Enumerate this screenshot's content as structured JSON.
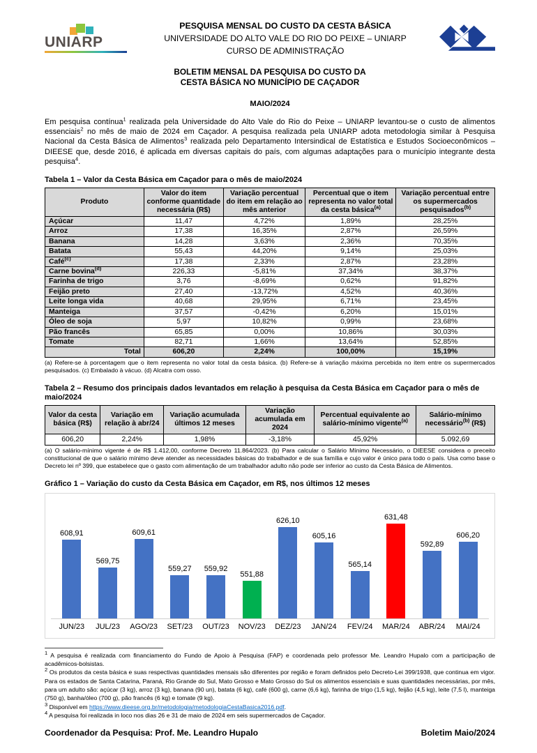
{
  "colors": {
    "bar_blue": "#4472c4",
    "bar_green": "#00b050",
    "bar_red": "#ff0000",
    "table_header_bg": "#d9d9d9",
    "logo_navy": "#1c3f94",
    "link_blue": "#0563c1"
  },
  "header": {
    "uniarp_wordmark": "UNIARP",
    "research_title": "PESQUISA MENSAL DO CUSTO DA CESTA BÁSICA",
    "university": "UNIVERSIDADE DO ALTO VALE DO RIO DO PEIXE – UNIARP",
    "course": "CURSO DE ADMINISTRAÇÃO"
  },
  "bulletin": {
    "title_line1": "BOLETIM MENSAL DA PESQUISA DO CUSTO DA",
    "title_line2": "CESTA BÁSICA NO MUNICÍPIO DE CAÇADOR",
    "month": "MAIO/2024"
  },
  "intro": {
    "p1": "Em pesquisa contínua",
    "s1": "1",
    "p2": " realizada pela Universidade do Alto Vale do Rio do Peixe – UNIARP levantou-se o custo de alimentos essenciais",
    "s2": "2",
    "p3": " no mês de maio de 2024 em Caçador. A pesquisa realizada pela UNIARP adota metodologia similar à Pesquisa Nacional da Cesta Básica de Alimentos",
    "s3": "3",
    "p4": " realizada pelo Departamento Intersindical de Estatística e Estudos Socioeconômicos – DIEESE que, desde 2016, é aplicada em diversas capitais do país, com algumas adaptações para o município integrante desta pesquisa",
    "s4": "4",
    "p5": "."
  },
  "table1": {
    "title": "Tabela 1 – Valor da Cesta Básica em Caçador para o mês de maio/2024",
    "headers": [
      {
        "pre": "Produto",
        "sup": "",
        "post": ""
      },
      {
        "pre": "Valor do item conforme quantidade necessária (R$)",
        "sup": "",
        "post": ""
      },
      {
        "pre": "Variação percentual do item em relação ao mês anterior",
        "sup": "",
        "post": ""
      },
      {
        "pre": "Percentual que o item representa no valor total da cesta básica",
        "sup": "(a)",
        "post": ""
      },
      {
        "pre": "Variação percentual entre os supermercados pesquisados",
        "sup": "(b)",
        "post": ""
      }
    ],
    "rows": [
      {
        "name": "Açúcar",
        "sup": "",
        "valor": "11,47",
        "var_mes": "4,72%",
        "pct_total": "1,89%",
        "var_super": "28,25%"
      },
      {
        "name": "Arroz",
        "sup": "",
        "valor": "17,38",
        "var_mes": "16,35%",
        "pct_total": "2,87%",
        "var_super": "26,59%"
      },
      {
        "name": "Banana",
        "sup": "",
        "valor": "14,28",
        "var_mes": "3,63%",
        "pct_total": "2,36%",
        "var_super": "70,35%"
      },
      {
        "name": "Batata",
        "sup": "",
        "valor": "55,43",
        "var_mes": "44,20%",
        "pct_total": "9,14%",
        "var_super": "25,03%"
      },
      {
        "name": "Café",
        "sup": "(c)",
        "valor": "17,38",
        "var_mes": "2,33%",
        "pct_total": "2,87%",
        "var_super": "23,28%"
      },
      {
        "name": "Carne bovina",
        "sup": "(d)",
        "valor": "226,33",
        "var_mes": "-5,81%",
        "pct_total": "37,34%",
        "var_super": "38,37%"
      },
      {
        "name": "Farinha de trigo",
        "sup": "",
        "valor": "3,76",
        "var_mes": "-8,69%",
        "pct_total": "0,62%",
        "var_super": "91,82%"
      },
      {
        "name": "Feijão preto",
        "sup": "",
        "valor": "27,40",
        "var_mes": "-13,72%",
        "pct_total": "4,52%",
        "var_super": "40,36%"
      },
      {
        "name": "Leite longa vida",
        "sup": "",
        "valor": "40,68",
        "var_mes": "29,95%",
        "pct_total": "6,71%",
        "var_super": "23,45%"
      },
      {
        "name": "Manteiga",
        "sup": "",
        "valor": "37,57",
        "var_mes": "-0,42%",
        "pct_total": "6,20%",
        "var_super": "15,01%"
      },
      {
        "name": "Óleo de soja",
        "sup": "",
        "valor": "5,97",
        "var_mes": "10,82%",
        "pct_total": "0,99%",
        "var_super": "23,68%"
      },
      {
        "name": "Pão francês",
        "sup": "",
        "valor": "65,85",
        "var_mes": "0,00%",
        "pct_total": "10,86%",
        "var_super": "30,03%"
      },
      {
        "name": "Tomate",
        "sup": "",
        "valor": "82,71",
        "var_mes": "1,66%",
        "pct_total": "13,64%",
        "var_super": "52,85%"
      }
    ],
    "total": {
      "label": "Total",
      "valor": "606,20",
      "var_mes": "2,24%",
      "pct_total": "100,00%",
      "var_super": "15,19%"
    },
    "footnote": "(a) Refere-se à porcentagem que o item representa no valor total da cesta básica. (b) Refere-se à variação máxima percebida no item entre os supermercados pesquisados. (c) Embalado à vácuo. (d) Alcatra com osso."
  },
  "table2": {
    "title": "Tabela 2 – Resumo dos principais dados levantados em relação à pesquisa da Cesta Básica em Caçador para o mês de maio/2024",
    "headers": [
      {
        "pre": "Valor da cesta básica (R$)",
        "sup": "",
        "post": ""
      },
      {
        "pre": "Variação em relação à abr/24",
        "sup": "",
        "post": ""
      },
      {
        "pre": "Variação acumulada últimos 12 meses",
        "sup": "",
        "post": ""
      },
      {
        "pre": "Variação acumulada em 2024",
        "sup": "",
        "post": ""
      },
      {
        "pre": "Percentual equivalente ao salário-mínimo vigente",
        "sup": "(a)",
        "post": ""
      },
      {
        "pre": "Salário-mínimo necessário",
        "sup": "(b)",
        "post": " (R$)"
      }
    ],
    "values": [
      "606,20",
      "2,24%",
      "1,98%",
      "-3,18%",
      "45,92%",
      "5.092,69"
    ],
    "footnote": "(a) O salário-mínimo vigente é de R$ 1.412,00, conforme Decreto 11.864/2023. (b) Para calcular o Salário Mínimo Necessário, o DIEESE considera o preceito constitucional de que o salário mínimo deve atender as necessidades básicas do trabalhador e de sua família e cujo valor é único para todo o país. Usa como base o Decreto lei nº 399, que estabelece que o gasto com alimentação de um trabalhador adulto não pode ser inferior ao custo da Cesta Básica de Alimentos."
  },
  "chart_data": {
    "type": "bar",
    "title": "Gráfico 1 – Variação do custo da Cesta Básica em Caçador, em R$, nos últimos 12 meses",
    "categories": [
      "JUN/23",
      "JUL/23",
      "AGO/23",
      "SET/23",
      "OUT/23",
      "NOV/23",
      "DEZ/23",
      "JAN/24",
      "FEV/24",
      "MAR/24",
      "ABR/24",
      "MAI/24"
    ],
    "values": [
      608.91,
      569.75,
      609.61,
      559.27,
      559.92,
      551.88,
      626.1,
      605.16,
      565.14,
      631.48,
      592.89,
      606.2
    ],
    "labels": [
      "608,91",
      "569,75",
      "609,61",
      "559,27",
      "559,92",
      "551,88",
      "626,10",
      "605,16",
      "565,14",
      "631,48",
      "592,89",
      "606,20"
    ],
    "colors": [
      "#4472c4",
      "#4472c4",
      "#4472c4",
      "#4472c4",
      "#4472c4",
      "#00b050",
      "#4472c4",
      "#4472c4",
      "#4472c4",
      "#ff0000",
      "#4472c4",
      "#4472c4"
    ],
    "ylim": [
      500,
      645
    ],
    "grid": false,
    "legend": false,
    "xlabel": "",
    "ylabel": ""
  },
  "footnotes": [
    {
      "marker": "1",
      "text": " A pesquisa é realizada com financiamento do Fundo de Apoio à Pesquisa (FAP) e coordenada pelo professor Me. Leandro Hupalo com a participação de acadêmicos-bolsistas.",
      "link": "",
      "after": ""
    },
    {
      "marker": "2",
      "text": " Os produtos da cesta básica e suas respectivas quantidades mensais são diferentes por região e foram definidos pelo Decreto-Lei 399/1938, que continua em vigor. Para os estados de Santa Catarina, Paraná, Rio Grande do Sul, Mato Grosso e Mato Grosso do Sul os alimentos essenciais e suas quantidades necessárias, por mês, para um adulto são: açúcar (3 kg), arroz (3 kg), banana (90 un), batata (6 kg), café (600 g), carne (6,6 kg), farinha de trigo (1,5 kg), feijão (4,5 kg), leite (7,5 l), manteiga (750 g), banha/óleo (700 g), pão francês (6 kg) e tomate (9 kg).",
      "link": "",
      "after": ""
    },
    {
      "marker": "3",
      "text": " Disponível em ",
      "link": "https://www.dieese.org.br/metodologia/metodologiaCestaBasica2016.pdf",
      "after": "."
    },
    {
      "marker": "4",
      "text": " A pesquisa foi realizada in loco nos dias 26 e 31 de maio de 2024 em seis supermercados de Caçador.",
      "link": "",
      "after": ""
    }
  ],
  "footer": {
    "coordinator": "Coordenador da Pesquisa: Prof. Me. Leandro Hupalo",
    "bulletin_ref": "Boletim Maio/2024"
  }
}
